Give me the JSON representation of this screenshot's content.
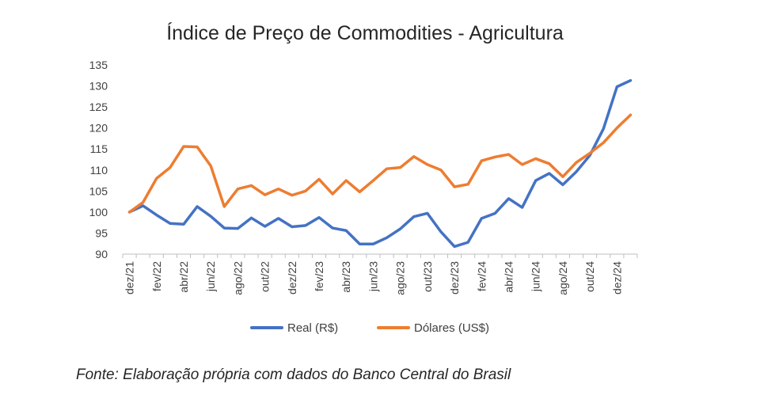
{
  "chart_data": {
    "type": "line",
    "title": "Índice de Preço de Commodities - Agricultura",
    "xlabel": "",
    "ylabel": "",
    "ylim": [
      90,
      135
    ],
    "yticks": [
      90,
      95,
      100,
      105,
      110,
      115,
      120,
      125,
      130,
      135
    ],
    "grid": false,
    "legend_position": "bottom",
    "x": [
      "dez/21",
      "jan/22",
      "fev/22",
      "mar/22",
      "abr/22",
      "mai/22",
      "jun/22",
      "jul/22",
      "ago/22",
      "set/22",
      "out/22",
      "nov/22",
      "dez/22",
      "jan/23",
      "fev/23",
      "mar/23",
      "abr/23",
      "mai/23",
      "jun/23",
      "jul/23",
      "ago/23",
      "set/23",
      "out/23",
      "nov/23",
      "dez/23",
      "jan/24",
      "fev/24",
      "mar/24",
      "abr/24",
      "mai/24",
      "jun/24",
      "jul/24",
      "ago/24",
      "set/24",
      "out/24",
      "nov/24",
      "dez/24",
      "jan/25"
    ],
    "x_tick_labels": [
      "dez/21",
      "fev/22",
      "abr/22",
      "jun/22",
      "ago/22",
      "out/22",
      "dez/22",
      "fev/23",
      "abr/23",
      "jun/23",
      "ago/23",
      "out/23",
      "dez/23",
      "fev/24",
      "abr/24",
      "jun/24",
      "ago/24",
      "out/24",
      "dez/24"
    ],
    "series": [
      {
        "name": "Real (R$)",
        "color": "#4472c4",
        "values": [
          100,
          101.5,
          99.3,
          97.3,
          97.1,
          101.3,
          99.0,
          96.2,
          96.1,
          98.6,
          96.6,
          98.5,
          96.5,
          96.8,
          98.7,
          96.2,
          95.6,
          92.4,
          92.4,
          93.9,
          96.0,
          98.9,
          99.7,
          95.3,
          91.8,
          92.8,
          98.5,
          99.7,
          103.2,
          101.1,
          107.5,
          109.2,
          106.5,
          109.6,
          113.5,
          119.8,
          129.8,
          131.3
        ]
      },
      {
        "name": "Dólares (US$)",
        "color": "#ed7d31",
        "values": [
          100,
          102.3,
          108.0,
          110.6,
          115.6,
          115.5,
          111.0,
          101.3,
          105.5,
          106.3,
          104.1,
          105.5,
          104.0,
          105.0,
          107.8,
          104.3,
          107.5,
          104.8,
          107.5,
          110.3,
          110.6,
          113.2,
          111.3,
          110.0,
          106.0,
          106.6,
          112.2,
          113.1,
          113.7,
          111.3,
          112.7,
          111.5,
          108.4,
          111.8,
          114.0,
          116.5,
          120.0,
          123.1
        ]
      }
    ]
  },
  "source_note": "Fonte: Elaboração própria com dados do Banco Central do Brasil"
}
